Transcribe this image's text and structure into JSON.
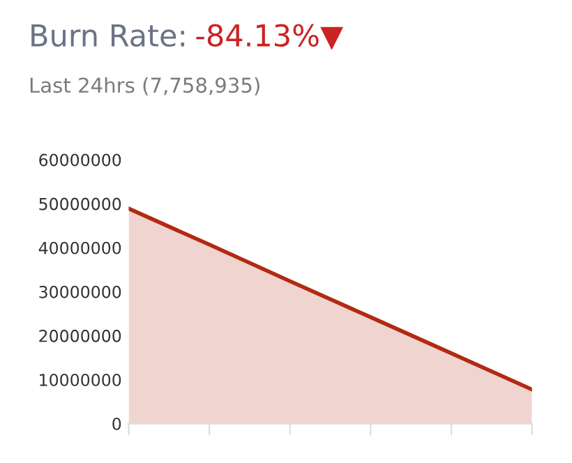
{
  "chart_data": {
    "type": "area",
    "title": "Burn Rate:",
    "subtitle": "Last 24hrs (7,758,935)",
    "annotations": [
      "-84.13%▼"
    ],
    "categories": [
      null,
      null,
      null,
      null,
      null,
      null
    ],
    "series": [
      {
        "color": "#b22a12",
        "values": [
          48900000,
          40700000,
          32400000,
          24200000,
          16000000,
          7760000
        ]
      }
    ],
    "ylim": [
      0,
      60000000
    ],
    "yticks": [
      0,
      10000000,
      20000000,
      30000000,
      40000000,
      50000000,
      60000000
    ],
    "grid": false,
    "legend": false,
    "marker": "none",
    "line_style": "solid"
  }
}
